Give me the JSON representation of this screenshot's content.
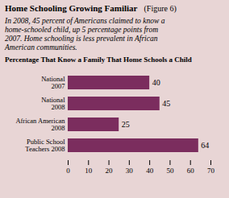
{
  "chart_data": {
    "type": "bar",
    "orientation": "horizontal",
    "title": "Home Schooling Growing Familiar",
    "subtitle": [
      "In 2008, 45 percent of Americans claimed to know a",
      "home-schooled child, up 5 percentage points from",
      "2007. Home schooling is less prevalent in African",
      "American communities."
    ],
    "annotations": [
      "(Figure 6)",
      "Percentage That Know a Family That Home Schools a Child"
    ],
    "categories": [
      "National\n2007",
      "National\n2008",
      "African American\n2008",
      "Public School\nTeachers 2008"
    ],
    "values": [
      40,
      45,
      25,
      64
    ],
    "color": "#7b2d5e",
    "xlim": [
      0,
      70
    ],
    "xticks": [
      0,
      10,
      20,
      30,
      40,
      50,
      60,
      70
    ],
    "grid": false,
    "data_labels": true
  }
}
